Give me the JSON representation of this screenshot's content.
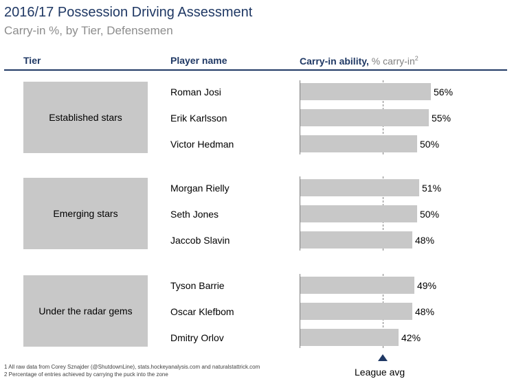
{
  "title": "2016/17 Possession Driving Assessment",
  "subtitle": "Carry-in %, by Tier, Defensemen",
  "headers": {
    "tier": "Tier",
    "player": "Player name",
    "metric_bold": "Carry-in ability,",
    "metric_light": "% carry-in",
    "metric_note": "2"
  },
  "chart_data": {
    "type": "bar",
    "orientation": "horizontal",
    "title": "2016/17 Possession Driving Assessment",
    "subtitle": "Carry-in %, by Tier, Defensemen",
    "xlabel": "% carry-in",
    "groups": [
      {
        "tier": "Established stars",
        "players": [
          {
            "name": "Roman Josi",
            "value": 56,
            "label": "56%"
          },
          {
            "name": "Erik Karlsson",
            "value": 55,
            "label": "55%"
          },
          {
            "name": "Victor Hedman",
            "value": 50,
            "label": "50%"
          }
        ]
      },
      {
        "tier": "Emerging stars",
        "players": [
          {
            "name": "Morgan Rielly",
            "value": 51,
            "label": "51%"
          },
          {
            "name": "Seth Jones",
            "value": 50,
            "label": "50%"
          },
          {
            "name": "Jaccob Slavin",
            "value": 48,
            "label": "48%"
          }
        ]
      },
      {
        "tier": "Under the radar gems",
        "players": [
          {
            "name": "Tyson Barrie",
            "value": 49,
            "label": "49%"
          },
          {
            "name": "Oscar Klefbom",
            "value": 48,
            "label": "48%"
          },
          {
            "name": "Dmitry Orlov",
            "value": 42,
            "label": "42%"
          }
        ]
      }
    ],
    "league_avg_label": "League avg",
    "league_avg_value": 31
  },
  "footnotes": [
    "1 All raw data from Corey Sznajder (@ShutdownLine), stats.hockeyanalysis.com and naturalstattrick.com",
    "2 Percentage of entries achieved by carrying the puck into the zone"
  ],
  "colors": {
    "title": "#1f3864",
    "bar": "#c8c8c8",
    "tier_box": "#c8c8c8",
    "rule": "#1f3864"
  }
}
